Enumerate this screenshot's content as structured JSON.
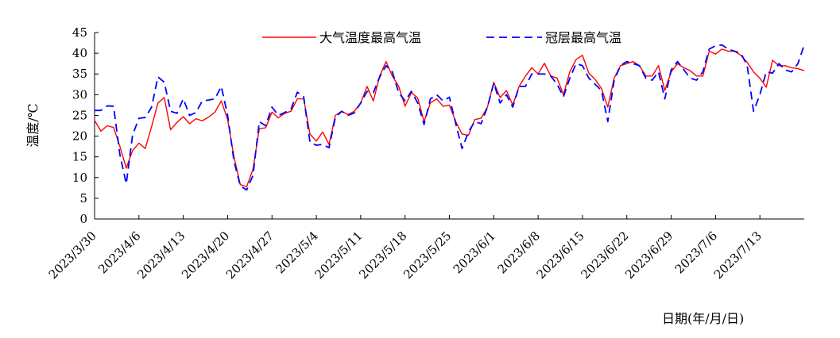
{
  "chart_data": {
    "type": "line",
    "title": "",
    "xlabel": "日期(年/月/日)",
    "ylabel": "温度/℃",
    "ylim": [
      0,
      45
    ],
    "yticks": [
      0,
      5,
      10,
      15,
      20,
      25,
      30,
      35,
      40,
      45
    ],
    "x_start": "2023/3/30",
    "x_tick_labels": [
      "2023/3/30",
      "2023/4/6",
      "2023/4/13",
      "2023/4/20",
      "2023/4/27",
      "2023/5/4",
      "2023/5/11",
      "2023/5/18",
      "2023/5/25",
      "2023/6/1",
      "2023/6/8",
      "2023/6/15",
      "2023/6/22",
      "2023/6/29",
      "2023/7/6",
      "2023/7/13"
    ],
    "legend_position": "top",
    "grid": false,
    "series": [
      {
        "name": "大气温度最高气温",
        "color": "#ff0000",
        "style": "solid",
        "values": [
          23.8,
          21.2,
          22.5,
          22.1,
          17.5,
          12.3,
          16.5,
          18.3,
          17.0,
          22.3,
          28.0,
          29.3,
          21.5,
          23.3,
          24.7,
          23.0,
          24.2,
          23.7,
          24.6,
          25.8,
          28.5,
          24.0,
          15.0,
          8.3,
          7.8,
          12.0,
          21.8,
          22.0,
          25.8,
          24.4,
          25.5,
          26.0,
          29.0,
          29.0,
          20.5,
          18.8,
          21.0,
          18.0,
          25.0,
          26.0,
          25.2,
          26.0,
          28.0,
          32.0,
          28.5,
          34.5,
          38.0,
          34.5,
          32.0,
          27.2,
          30.5,
          29.2,
          23.5,
          28.0,
          29.0,
          27.2,
          27.5,
          23.5,
          20.5,
          20.2,
          24.0,
          24.3,
          27.0,
          33.0,
          29.3,
          31.0,
          27.5,
          32.0,
          34.5,
          36.5,
          35.0,
          37.6,
          34.5,
          34.0,
          30.0,
          35.5,
          38.5,
          39.5,
          35.2,
          33.7,
          31.5,
          27.0,
          34.0,
          37.0,
          37.5,
          38.0,
          37.0,
          34.5,
          34.5,
          37.0,
          31.0,
          35.5,
          37.5,
          36.5,
          35.8,
          34.5,
          34.5,
          40.5,
          39.8,
          41.0,
          40.5,
          40.5,
          39.5,
          37.8,
          35.5,
          34.0,
          31.8,
          38.3,
          37.0,
          37.0,
          36.5,
          36.3,
          35.8
        ]
      },
      {
        "name": "冠层最高气温",
        "color": "#0000ff",
        "style": "dashed",
        "values": [
          26.2,
          26.2,
          27.3,
          27.2,
          15.5,
          8.5,
          20.3,
          24.3,
          24.5,
          27.0,
          34.3,
          33.0,
          26.0,
          25.5,
          29.0,
          25.0,
          25.7,
          28.5,
          28.7,
          29.0,
          32.0,
          25.0,
          14.0,
          8.0,
          7.0,
          10.5,
          23.5,
          22.5,
          27.0,
          25.0,
          25.7,
          26.5,
          30.6,
          29.5,
          18.5,
          17.8,
          18.0,
          17.2,
          24.5,
          26.0,
          25.0,
          25.6,
          28.0,
          30.8,
          30.5,
          34.3,
          37.0,
          35.5,
          30.5,
          28.5,
          30.8,
          28.0,
          22.8,
          29.0,
          30.0,
          28.5,
          29.4,
          23.0,
          17.0,
          21.0,
          23.5,
          23.0,
          27.0,
          32.8,
          28.0,
          30.0,
          27.0,
          32.0,
          32.0,
          35.0,
          35.0,
          35.0,
          34.5,
          32.5,
          29.5,
          34.0,
          37.5,
          37.0,
          34.0,
          32.5,
          31.0,
          23.5,
          33.5,
          37.0,
          38.0,
          37.5,
          37.0,
          34.0,
          33.5,
          35.5,
          29.0,
          36.0,
          38.0,
          36.0,
          34.0,
          33.5,
          35.5,
          41.0,
          41.8,
          42.0,
          41.0,
          40.5,
          40.0,
          37.0,
          26.0,
          30.0,
          35.5,
          35.2,
          37.5,
          36.0,
          35.5,
          37.5,
          42.0
        ]
      }
    ]
  }
}
